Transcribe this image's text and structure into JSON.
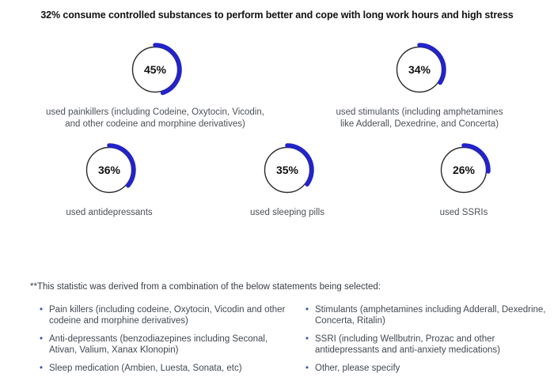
{
  "chart_data": {
    "type": "pie",
    "subtype": "donut-progress-gauges",
    "title": "32% consume controlled substances to perform better and cope with long work hours and high stress",
    "unit": "%",
    "legend_position": "none",
    "grid": false,
    "colors": {
      "arc": "#2323cb",
      "ring_outline": "#2b2b2b"
    },
    "gauges": [
      {
        "value": 45,
        "display": "45%",
        "row": 1,
        "caption_lines": [
          "used painkillers (including Codeine, Oxytocin, Vicodin,",
          "and other codeine and morphine derivatives)"
        ]
      },
      {
        "value": 34,
        "display": "34%",
        "row": 1,
        "caption_lines": [
          "used stimulants (including amphetamines",
          "like Adderall, Dexedrine, and Concerta)"
        ]
      },
      {
        "value": 36,
        "display": "36%",
        "row": 2,
        "caption_lines": [
          "used antidepressants"
        ]
      },
      {
        "value": 35,
        "display": "35%",
        "row": 2,
        "caption_lines": [
          "used sleeping pills"
        ]
      },
      {
        "value": 26,
        "display": "26%",
        "row": 2,
        "caption_lines": [
          "used SSRIs"
        ]
      }
    ]
  },
  "footnote": {
    "header": "**This statistic was derived from a combination of the below statements being selected:",
    "bullet_color": "#2e59b8",
    "columns": [
      {
        "items": [
          {
            "lines": [
              "Pain killers (including codeine, Oxytocin, Vicodin and other",
              "codeine and morphine derivatives)"
            ]
          },
          {
            "lines": [
              "Anti-depressants (benzodiazepines including Seconal,",
              "Ativan, Valium, Xanax Klonopin)"
            ]
          },
          {
            "lines": [
              "Sleep medication (Ambien, Luesta, Sonata, etc)"
            ]
          }
        ]
      },
      {
        "items": [
          {
            "lines": [
              "Stimulants (amphetamines including Adderall, Dexedrine,",
              "Concerta, Ritalin)"
            ]
          },
          {
            "lines": [
              "SSRI (including Wellbutrin, Prozac and other",
              "antidepressants and anti-anxiety medications)"
            ]
          },
          {
            "lines": [
              "Other, please specify"
            ]
          }
        ]
      }
    ]
  }
}
